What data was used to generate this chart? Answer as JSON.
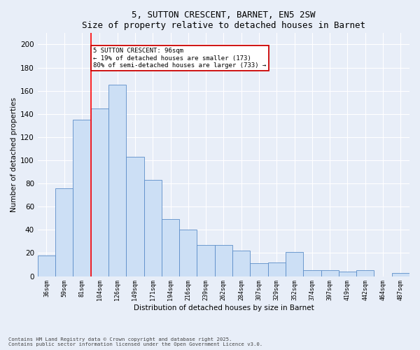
{
  "title": "5, SUTTON CRESCENT, BARNET, EN5 2SW",
  "subtitle": "Size of property relative to detached houses in Barnet",
  "xlabel": "Distribution of detached houses by size in Barnet",
  "ylabel": "Number of detached properties",
  "categories": [
    "36sqm",
    "59sqm",
    "81sqm",
    "104sqm",
    "126sqm",
    "149sqm",
    "171sqm",
    "194sqm",
    "216sqm",
    "239sqm",
    "262sqm",
    "284sqm",
    "307sqm",
    "329sqm",
    "352sqm",
    "374sqm",
    "397sqm",
    "419sqm",
    "442sqm",
    "464sqm",
    "487sqm"
  ],
  "values": [
    18,
    76,
    135,
    145,
    165,
    103,
    83,
    49,
    40,
    27,
    27,
    22,
    11,
    12,
    21,
    5,
    5,
    4,
    5,
    0,
    3
  ],
  "bar_color": "#ccdff5",
  "bar_edge_color": "#5b8dc8",
  "background_color": "#e8eef8",
  "grid_color": "#ffffff",
  "ylim": [
    0,
    210
  ],
  "yticks": [
    0,
    20,
    40,
    60,
    80,
    100,
    120,
    140,
    160,
    180,
    200
  ],
  "red_line_x": 2.5,
  "annotation_text": "5 SUTTON CRESCENT: 96sqm\n← 19% of detached houses are smaller (173)\n80% of semi-detached houses are larger (733) →",
  "annotation_box_color": "#ffffff",
  "annotation_box_edge_color": "#cc0000",
  "footer_line1": "Contains HM Land Registry data © Crown copyright and database right 2025.",
  "footer_line2": "Contains public sector information licensed under the Open Government Licence v3.0."
}
